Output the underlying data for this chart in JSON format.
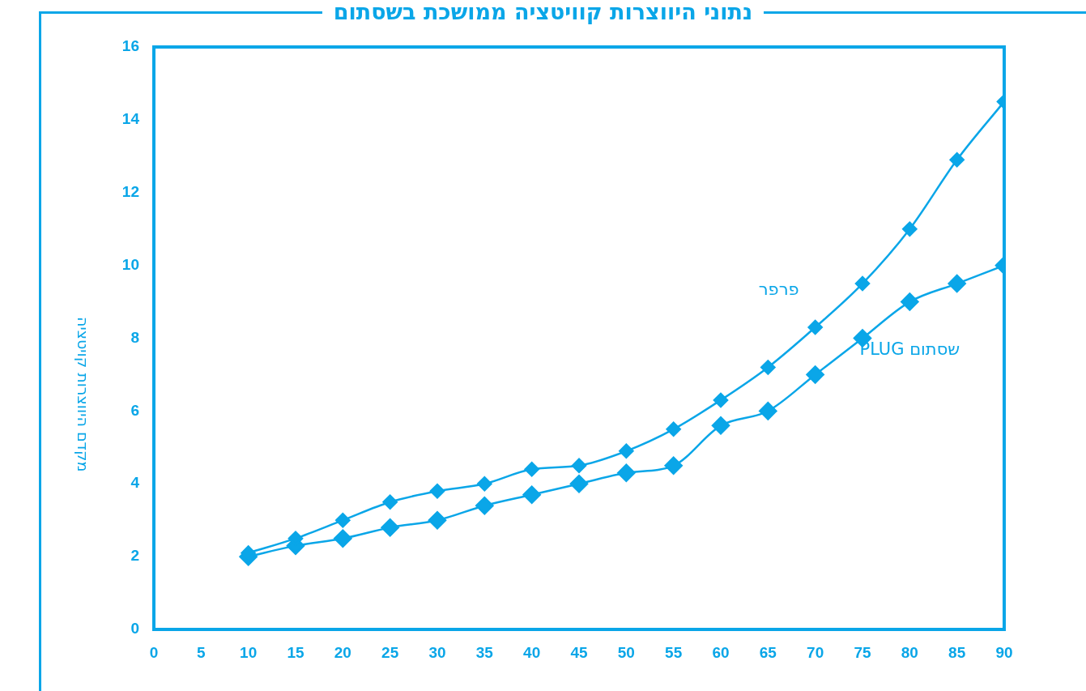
{
  "chart_data": {
    "type": "line",
    "title": "נתוני היווצרות קוויטציה ממושכת בשסתום",
    "ylabel": "מקדם היווצרות קויטציה",
    "x": [
      10,
      15,
      20,
      25,
      30,
      35,
      40,
      45,
      50,
      55,
      60,
      65,
      70,
      75,
      80,
      85,
      90
    ],
    "series": [
      {
        "name": "פרפר",
        "color": "#0aa6e8",
        "values": [
          2.1,
          2.5,
          3.0,
          3.5,
          3.8,
          4.0,
          4.4,
          4.5,
          4.9,
          5.5,
          6.3,
          7.2,
          8.3,
          9.5,
          11.0,
          12.9,
          14.5
        ]
      },
      {
        "name": "שסתום PLUG",
        "color": "#0aa6e8",
        "values": [
          2.0,
          2.3,
          2.5,
          2.8,
          3.0,
          3.4,
          3.7,
          4.0,
          4.3,
          4.5,
          5.6,
          6.0,
          7.0,
          8.0,
          9.0,
          9.5,
          10.0
        ]
      }
    ],
    "xlim": [
      0,
      90
    ],
    "xticks": [
      0,
      5,
      10,
      15,
      20,
      25,
      30,
      35,
      40,
      45,
      50,
      55,
      60,
      65,
      70,
      75,
      80,
      85,
      90
    ],
    "ylim": [
      0,
      16
    ],
    "yticks": [
      0,
      2,
      4,
      6,
      8,
      10,
      12,
      14,
      16
    ],
    "marker": "diamond",
    "line_style": "solid",
    "legend": false,
    "grid": false
  }
}
